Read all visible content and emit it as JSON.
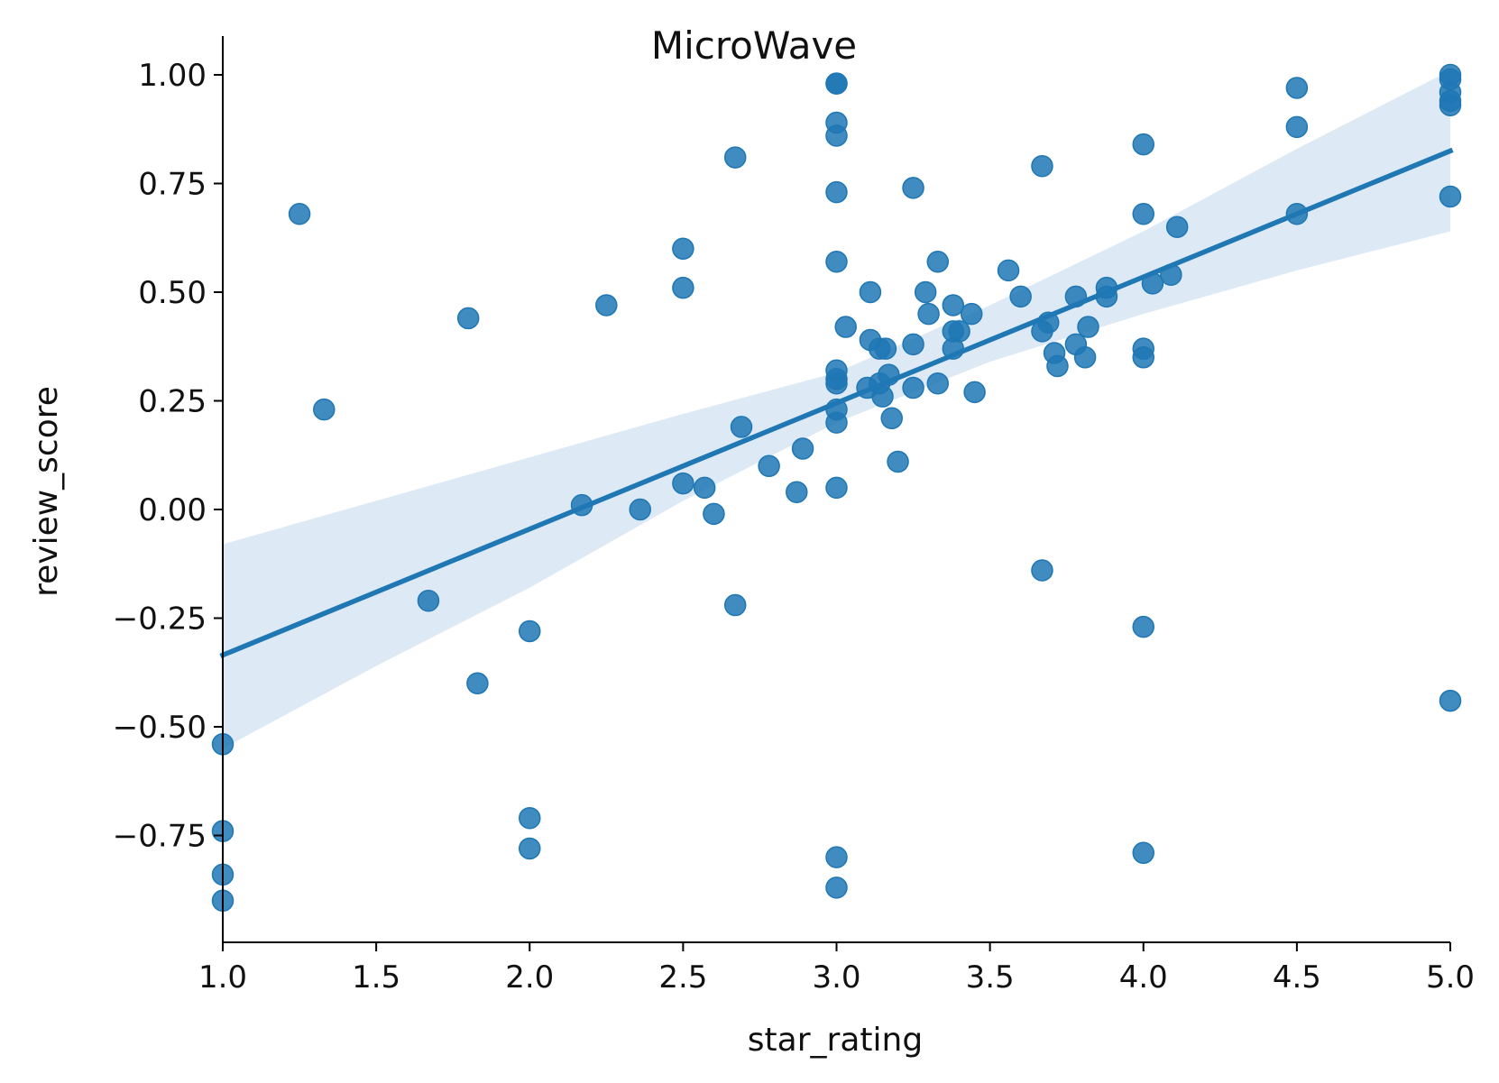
{
  "chart_data": {
    "type": "scatter",
    "title": "MicroWave",
    "xlabel": "star_rating",
    "ylabel": "review_score",
    "xlim": [
      1.0,
      5.0
    ],
    "ylim": [
      -1.0,
      1.09
    ],
    "xticks": [
      1.0,
      1.5,
      2.0,
      2.5,
      3.0,
      3.5,
      4.0,
      4.5,
      5.0
    ],
    "xtick_labels": [
      "1.0",
      "1.5",
      "2.0",
      "2.5",
      "3.0",
      "3.5",
      "4.0",
      "4.5",
      "5.0"
    ],
    "yticks": [
      1.0,
      0.75,
      0.5,
      0.25,
      0.0,
      -0.25,
      -0.5,
      -0.75
    ],
    "ytick_labels": [
      "1.00",
      "0.75",
      "0.50",
      "0.25",
      "0.00",
      "−0.25",
      "−0.50",
      "−0.75"
    ],
    "grid": false,
    "color": "#1f77b4",
    "band_color": "#c6dbef",
    "points": [
      {
        "x": 1.0,
        "y": -0.54
      },
      {
        "x": 1.0,
        "y": -0.74
      },
      {
        "x": 1.0,
        "y": -0.84
      },
      {
        "x": 1.0,
        "y": -0.9
      },
      {
        "x": 1.25,
        "y": 0.68
      },
      {
        "x": 1.33,
        "y": 0.23
      },
      {
        "x": 1.67,
        "y": -0.21
      },
      {
        "x": 1.8,
        "y": 0.44
      },
      {
        "x": 1.83,
        "y": -0.4
      },
      {
        "x": 2.0,
        "y": -0.28
      },
      {
        "x": 2.0,
        "y": -0.71
      },
      {
        "x": 2.0,
        "y": -0.78
      },
      {
        "x": 2.17,
        "y": 0.01
      },
      {
        "x": 2.25,
        "y": 0.47
      },
      {
        "x": 2.36,
        "y": 0.0
      },
      {
        "x": 2.5,
        "y": 0.6
      },
      {
        "x": 2.5,
        "y": 0.51
      },
      {
        "x": 2.5,
        "y": 0.06
      },
      {
        "x": 2.57,
        "y": 0.05
      },
      {
        "x": 2.6,
        "y": -0.01
      },
      {
        "x": 2.67,
        "y": 0.81
      },
      {
        "x": 2.67,
        "y": -0.22
      },
      {
        "x": 2.69,
        "y": 0.19
      },
      {
        "x": 2.78,
        "y": 0.1
      },
      {
        "x": 2.87,
        "y": 0.04
      },
      {
        "x": 2.89,
        "y": 0.14
      },
      {
        "x": 3.0,
        "y": 0.98
      },
      {
        "x": 3.0,
        "y": 0.98
      },
      {
        "x": 3.0,
        "y": 0.89
      },
      {
        "x": 3.0,
        "y": 0.86
      },
      {
        "x": 3.0,
        "y": 0.73
      },
      {
        "x": 3.0,
        "y": 0.57
      },
      {
        "x": 3.0,
        "y": 0.32
      },
      {
        "x": 3.0,
        "y": 0.3
      },
      {
        "x": 3.0,
        "y": 0.29
      },
      {
        "x": 3.0,
        "y": 0.23
      },
      {
        "x": 3.0,
        "y": 0.2
      },
      {
        "x": 3.0,
        "y": 0.05
      },
      {
        "x": 3.0,
        "y": -0.8
      },
      {
        "x": 3.0,
        "y": -0.87
      },
      {
        "x": 3.03,
        "y": 0.42
      },
      {
        "x": 3.11,
        "y": 0.5
      },
      {
        "x": 3.11,
        "y": 0.39
      },
      {
        "x": 3.1,
        "y": 0.28
      },
      {
        "x": 3.14,
        "y": 0.37
      },
      {
        "x": 3.14,
        "y": 0.29
      },
      {
        "x": 3.15,
        "y": 0.26
      },
      {
        "x": 3.16,
        "y": 0.37
      },
      {
        "x": 3.17,
        "y": 0.31
      },
      {
        "x": 3.18,
        "y": 0.21
      },
      {
        "x": 3.2,
        "y": 0.11
      },
      {
        "x": 3.25,
        "y": 0.74
      },
      {
        "x": 3.25,
        "y": 0.38
      },
      {
        "x": 3.25,
        "y": 0.28
      },
      {
        "x": 3.29,
        "y": 0.5
      },
      {
        "x": 3.3,
        "y": 0.45
      },
      {
        "x": 3.33,
        "y": 0.57
      },
      {
        "x": 3.33,
        "y": 0.29
      },
      {
        "x": 3.38,
        "y": 0.47
      },
      {
        "x": 3.38,
        "y": 0.41
      },
      {
        "x": 3.38,
        "y": 0.37
      },
      {
        "x": 3.4,
        "y": 0.41
      },
      {
        "x": 3.44,
        "y": 0.45
      },
      {
        "x": 3.45,
        "y": 0.27
      },
      {
        "x": 3.56,
        "y": 0.55
      },
      {
        "x": 3.6,
        "y": 0.49
      },
      {
        "x": 3.67,
        "y": 0.79
      },
      {
        "x": 3.67,
        "y": 0.41
      },
      {
        "x": 3.67,
        "y": -0.14
      },
      {
        "x": 3.69,
        "y": 0.43
      },
      {
        "x": 3.71,
        "y": 0.36
      },
      {
        "x": 3.72,
        "y": 0.33
      },
      {
        "x": 3.78,
        "y": 0.49
      },
      {
        "x": 3.78,
        "y": 0.38
      },
      {
        "x": 3.81,
        "y": 0.35
      },
      {
        "x": 3.82,
        "y": 0.42
      },
      {
        "x": 3.88,
        "y": 0.51
      },
      {
        "x": 3.88,
        "y": 0.49
      },
      {
        "x": 4.0,
        "y": 0.84
      },
      {
        "x": 4.0,
        "y": 0.68
      },
      {
        "x": 4.0,
        "y": 0.37
      },
      {
        "x": 4.0,
        "y": 0.35
      },
      {
        "x": 4.0,
        "y": -0.27
      },
      {
        "x": 4.0,
        "y": -0.79
      },
      {
        "x": 4.03,
        "y": 0.52
      },
      {
        "x": 4.09,
        "y": 0.54
      },
      {
        "x": 4.11,
        "y": 0.65
      },
      {
        "x": 4.5,
        "y": 0.97
      },
      {
        "x": 4.5,
        "y": 0.88
      },
      {
        "x": 4.5,
        "y": 0.68
      },
      {
        "x": 5.0,
        "y": 1.0
      },
      {
        "x": 5.0,
        "y": 0.99
      },
      {
        "x": 5.0,
        "y": 0.96
      },
      {
        "x": 5.0,
        "y": 0.94
      },
      {
        "x": 5.0,
        "y": 0.93
      },
      {
        "x": 5.0,
        "y": 0.72
      },
      {
        "x": 5.0,
        "y": -0.44
      }
    ],
    "regression": {
      "line": [
        {
          "x": 1.0,
          "y": -0.335
        },
        {
          "x": 5.0,
          "y": 0.825
        }
      ],
      "ci_upper": [
        {
          "x": 1.0,
          "y": -0.08
        },
        {
          "x": 1.5,
          "y": 0.02
        },
        {
          "x": 2.0,
          "y": 0.12
        },
        {
          "x": 2.5,
          "y": 0.22
        },
        {
          "x": 3.0,
          "y": 0.315
        },
        {
          "x": 3.5,
          "y": 0.47
        },
        {
          "x": 4.0,
          "y": 0.64
        },
        {
          "x": 4.5,
          "y": 0.83
        },
        {
          "x": 5.0,
          "y": 1.01
        }
      ],
      "ci_lower": [
        {
          "x": 1.0,
          "y": -0.55
        },
        {
          "x": 1.5,
          "y": -0.36
        },
        {
          "x": 2.0,
          "y": -0.18
        },
        {
          "x": 2.5,
          "y": 0.02
        },
        {
          "x": 3.0,
          "y": 0.2
        },
        {
          "x": 3.5,
          "y": 0.34
        },
        {
          "x": 4.0,
          "y": 0.45
        },
        {
          "x": 4.5,
          "y": 0.55
        },
        {
          "x": 5.0,
          "y": 0.64
        }
      ]
    }
  }
}
